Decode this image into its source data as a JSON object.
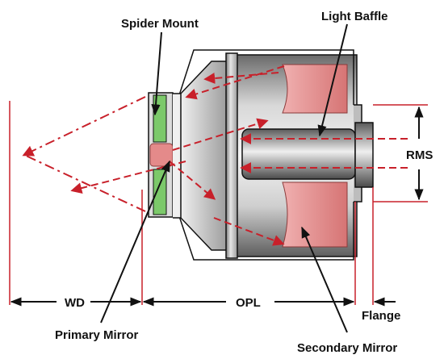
{
  "labels": {
    "spider_mount": "Spider Mount",
    "light_baffle": "Light Baffle",
    "rms": "RMS",
    "wd": "WD",
    "opl": "OPL",
    "flange": "Flange",
    "primary_mirror": "Primary Mirror",
    "secondary_mirror": "Secondary Mirror"
  },
  "colors": {
    "ray": "#c8202a",
    "mirror_pink": "#e48a8a",
    "spider_green": "#7cc96a",
    "outline": "#111111",
    "body_grey": "#b9b9b9"
  }
}
